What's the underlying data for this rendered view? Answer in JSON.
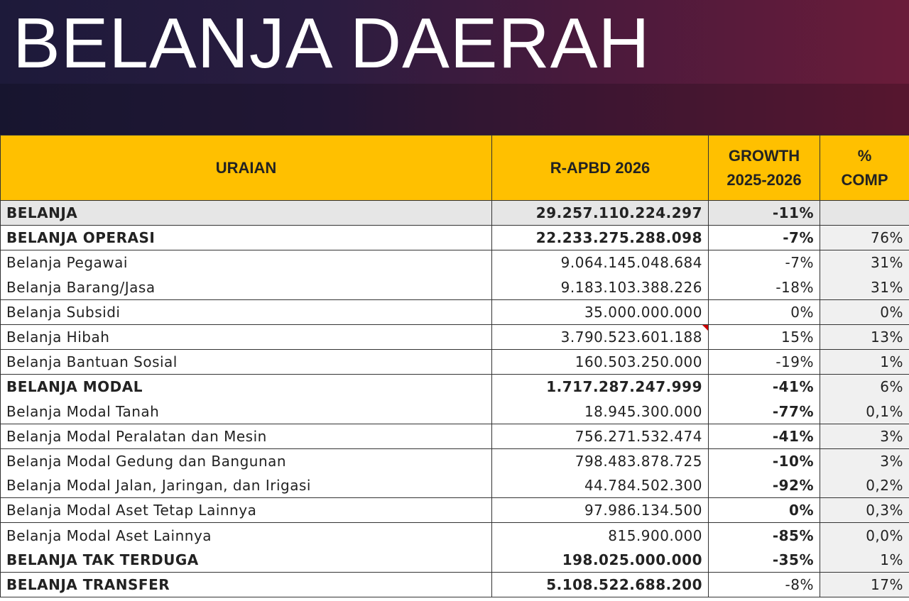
{
  "title": "BELANJA DAERAH",
  "table": {
    "headers": [
      "URAIAN",
      "R-APBD 2026",
      "GROWTH 2025-2026",
      "% COMP"
    ],
    "header_lines": {
      "growth": [
        "GROWTH",
        "2025-2026"
      ],
      "comp": [
        "%",
        "COMP"
      ]
    },
    "rows": [
      {
        "label": "BELANJA",
        "value": "29.257.110.224.297",
        "growth": "-11%",
        "comp": ""
      },
      {
        "label": "BELANJA OPERASI",
        "value": "22.233.275.288.098",
        "growth": "-7%",
        "comp": "76%"
      },
      {
        "label": "Belanja Pegawai",
        "value": "9.064.145.048.684",
        "growth": "-7%",
        "comp": "31%"
      },
      {
        "label": "Belanja Barang/Jasa",
        "value": "9.183.103.388.226",
        "growth": "-18%",
        "comp": "31%"
      },
      {
        "label": "Belanja Subsidi",
        "value": "35.000.000.000",
        "growth": "0%",
        "comp": "0%"
      },
      {
        "label": "Belanja Hibah",
        "value": "3.790.523.601.188",
        "growth": "15%",
        "comp": "13%"
      },
      {
        "label": "Belanja Bantuan Sosial",
        "value": "160.503.250.000",
        "growth": "-19%",
        "comp": "1%"
      },
      {
        "label": "BELANJA MODAL",
        "value": "1.717.287.247.999",
        "growth": "-41%",
        "comp": "6%"
      },
      {
        "label": "Belanja Modal Tanah",
        "value": "18.945.300.000",
        "growth": "-77%",
        "comp": "0,1%"
      },
      {
        "label": "Belanja Modal Peralatan dan Mesin",
        "value": "756.271.532.474",
        "growth": "-41%",
        "comp": "3%"
      },
      {
        "label": "Belanja Modal Gedung dan Bangunan",
        "value": "798.483.878.725",
        "growth": "-10%",
        "comp": "3%"
      },
      {
        "label": "Belanja Modal Jalan, Jaringan, dan Irigasi",
        "value": "44.784.502.300",
        "growth": "-92%",
        "comp": "0,2%"
      },
      {
        "label": "Belanja Modal Aset Tetap Lainnya",
        "value": "97.986.134.500",
        "growth": "0%",
        "comp": "0,3%"
      },
      {
        "label": "Belanja Modal Aset Lainnya",
        "value": "815.900.000",
        "growth": "-85%",
        "comp": "0,0%"
      },
      {
        "label": "BELANJA TAK TERDUGA",
        "value": "198.025.000.000",
        "growth": "-35%",
        "comp": "1%"
      },
      {
        "label": "BELANJA TRANSFER",
        "value": "5.108.522.688.200",
        "growth": "-8%",
        "comp": "17%"
      }
    ]
  },
  "colors": {
    "header": "#ffc000",
    "banner_left": "#1d1a3a",
    "banner_right": "#6a1c3a",
    "comment_marker": "#cc0000"
  }
}
